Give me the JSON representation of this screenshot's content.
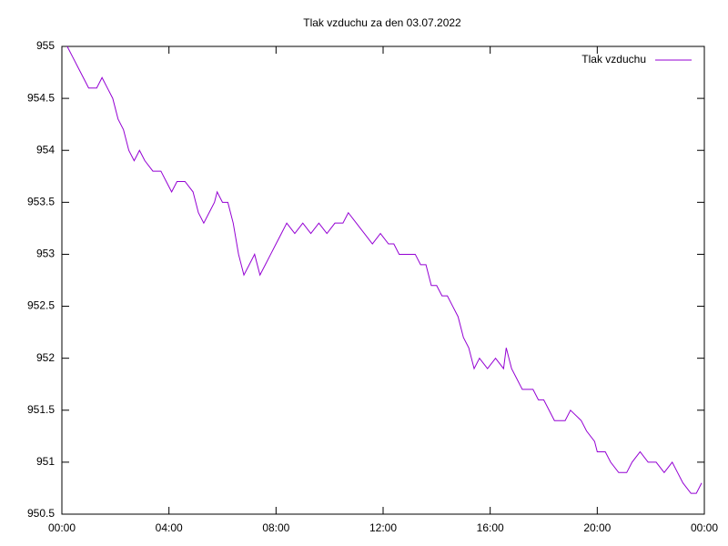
{
  "chart_data": {
    "type": "line",
    "title": "Tlak vzduchu za den 03.07.2022",
    "x": [
      0.2,
      0.4,
      0.6,
      0.8,
      1.0,
      1.3,
      1.5,
      1.7,
      1.9,
      2.1,
      2.3,
      2.5,
      2.7,
      2.9,
      3.1,
      3.4,
      3.7,
      3.9,
      4.1,
      4.3,
      4.6,
      4.9,
      5.1,
      5.3,
      5.5,
      5.7,
      5.8,
      6.0,
      6.2,
      6.4,
      6.6,
      6.8,
      7.0,
      7.2,
      7.4,
      7.6,
      7.8,
      8.0,
      8.2,
      8.4,
      8.7,
      9.0,
      9.3,
      9.6,
      9.9,
      10.2,
      10.5,
      10.7,
      11.0,
      11.3,
      11.6,
      11.9,
      12.2,
      12.4,
      12.6,
      13.0,
      13.2,
      13.4,
      13.6,
      13.8,
      14.0,
      14.2,
      14.4,
      14.6,
      14.8,
      15.0,
      15.2,
      15.4,
      15.6,
      15.9,
      16.2,
      16.5,
      16.6,
      16.8,
      17.0,
      17.2,
      17.6,
      17.8,
      18.0,
      18.2,
      18.4,
      18.8,
      19.0,
      19.4,
      19.6,
      19.9,
      20.0,
      20.3,
      20.5,
      20.8,
      21.1,
      21.3,
      21.6,
      21.9,
      22.2,
      22.5,
      22.8,
      23.0,
      23.2,
      23.5,
      23.7,
      23.9
    ],
    "series": [
      {
        "name": "Tlak vzduchu",
        "color": "#9400d3",
        "values": [
          955,
          954.9,
          954.8,
          954.7,
          954.6,
          954.6,
          954.7,
          954.6,
          954.5,
          954.3,
          954.2,
          954.0,
          953.9,
          954.0,
          953.9,
          953.8,
          953.8,
          953.7,
          953.6,
          953.7,
          953.7,
          953.6,
          953.4,
          953.3,
          953.4,
          953.5,
          953.6,
          953.5,
          953.5,
          953.3,
          953.0,
          952.8,
          952.9,
          953.0,
          952.8,
          952.9,
          953.0,
          953.1,
          953.2,
          953.3,
          953.2,
          953.3,
          953.2,
          953.3,
          953.2,
          953.3,
          953.3,
          953.4,
          953.3,
          953.2,
          953.1,
          953.2,
          953.1,
          953.1,
          953.0,
          953.0,
          953.0,
          952.9,
          952.9,
          952.7,
          952.7,
          952.6,
          952.6,
          952.5,
          952.4,
          952.2,
          952.1,
          951.9,
          952.0,
          951.9,
          952.0,
          951.9,
          952.1,
          951.9,
          951.8,
          951.7,
          951.7,
          951.6,
          951.6,
          951.5,
          951.4,
          951.4,
          951.5,
          951.4,
          951.3,
          951.2,
          951.1,
          951.1,
          951.0,
          950.9,
          950.9,
          951.0,
          951.1,
          951.0,
          951.0,
          950.9,
          951.0,
          950.9,
          950.8,
          950.7,
          950.7,
          950.8
        ]
      }
    ],
    "xlim": [
      0,
      24
    ],
    "xticks": [
      {
        "value": 0,
        "label": "00:00"
      },
      {
        "value": 4,
        "label": "04:00"
      },
      {
        "value": 8,
        "label": "08:00"
      },
      {
        "value": 12,
        "label": "12:00"
      },
      {
        "value": 16,
        "label": "16:00"
      },
      {
        "value": 20,
        "label": "20:00"
      },
      {
        "value": 24,
        "label": "00:00"
      }
    ],
    "ylim": [
      950.5,
      955
    ],
    "yticks": [
      950.5,
      951,
      951.5,
      952,
      952.5,
      953,
      953.5,
      954,
      954.5,
      955
    ],
    "legend": "top-right"
  }
}
